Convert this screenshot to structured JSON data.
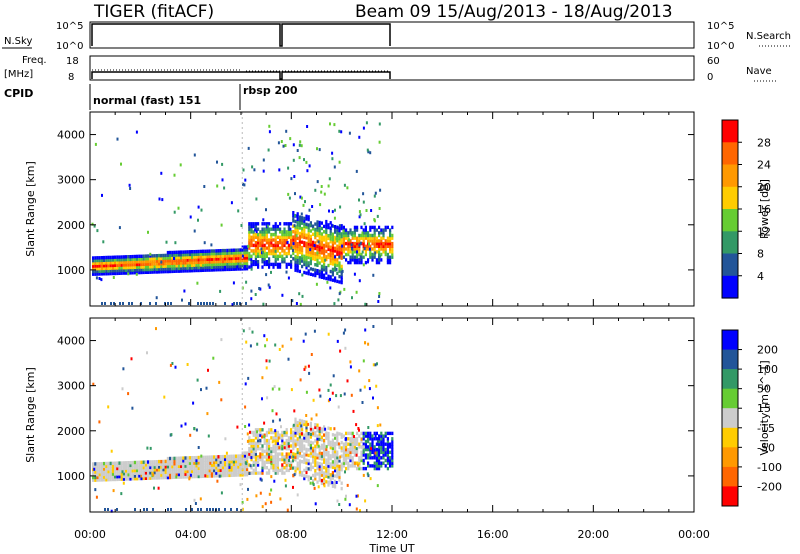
{
  "header": {
    "station": "TIGER (fitACF)",
    "beam_info": "Beam 09  15/Aug/2013 - 18/Aug/2013"
  },
  "strips": {
    "nsky_label": "N.Sky",
    "nsky_ticks": [
      "10^5",
      "10^0"
    ],
    "nsky_right_ticks": [
      "10^5",
      "10^0"
    ],
    "nsearch_label": "N.Search",
    "freq_label_1": "Freq.",
    "freq_label_2": "[MHz]",
    "freq_ticks": [
      "18",
      "8"
    ],
    "nave_ticks": [
      "60",
      "0"
    ],
    "nave_label": "Nave",
    "cpid_label": "CPID",
    "cpid_segments": [
      "normal (fast) 151",
      "rbsp 200"
    ]
  },
  "chart_data": [
    {
      "type": "heatmap",
      "title": "",
      "xlabel": "",
      "ylabel": "Slant Range [km]",
      "xlim": [
        "00:00",
        "00:00"
      ],
      "ylim": [
        200,
        4500
      ],
      "y_ticks": [
        "1000",
        "2000",
        "3000",
        "4000"
      ],
      "colorbar": {
        "label": "Power [dB]",
        "ticks": [
          "28",
          "24",
          "20",
          "16",
          "12",
          "8",
          "4"
        ],
        "colors": [
          "#ff0000",
          "#ff6600",
          "#ff9900",
          "#ffcc00",
          "#66cc33",
          "#339966",
          "#225599",
          "#0000ff"
        ]
      },
      "description_series": [
        {
          "start_hr": 0.0,
          "end_hr": 6.2,
          "range_center_km": 1150,
          "range_width_km": 300,
          "value": "22-28 dB"
        },
        {
          "start_hr": 6.2,
          "end_hr": 12.0,
          "range_center_km": 1500,
          "range_width_km": 800,
          "value": "16-28 dB"
        }
      ]
    },
    {
      "type": "heatmap",
      "title": "",
      "xlabel": "Time UT",
      "ylabel": "Slant Range [km]",
      "xlim": [
        "00:00",
        "00:00"
      ],
      "ylim": [
        200,
        4500
      ],
      "y_ticks": [
        "1000",
        "2000",
        "3000",
        "4000"
      ],
      "x_ticks": [
        "00:00",
        "04:00",
        "08:00",
        "12:00",
        "16:00",
        "20:00",
        "00:00"
      ],
      "colorbar": {
        "label": "Velocity [m s^-1]",
        "ticks": [
          "200",
          "100",
          "50",
          "15",
          "-15",
          "-50",
          "-100",
          "-200"
        ],
        "colors": [
          "#0000ff",
          "#225599",
          "#339966",
          "#66cc33",
          "#cccccc",
          "#ffcc00",
          "#ff9900",
          "#ff6600",
          "#ff0000"
        ]
      }
    }
  ]
}
